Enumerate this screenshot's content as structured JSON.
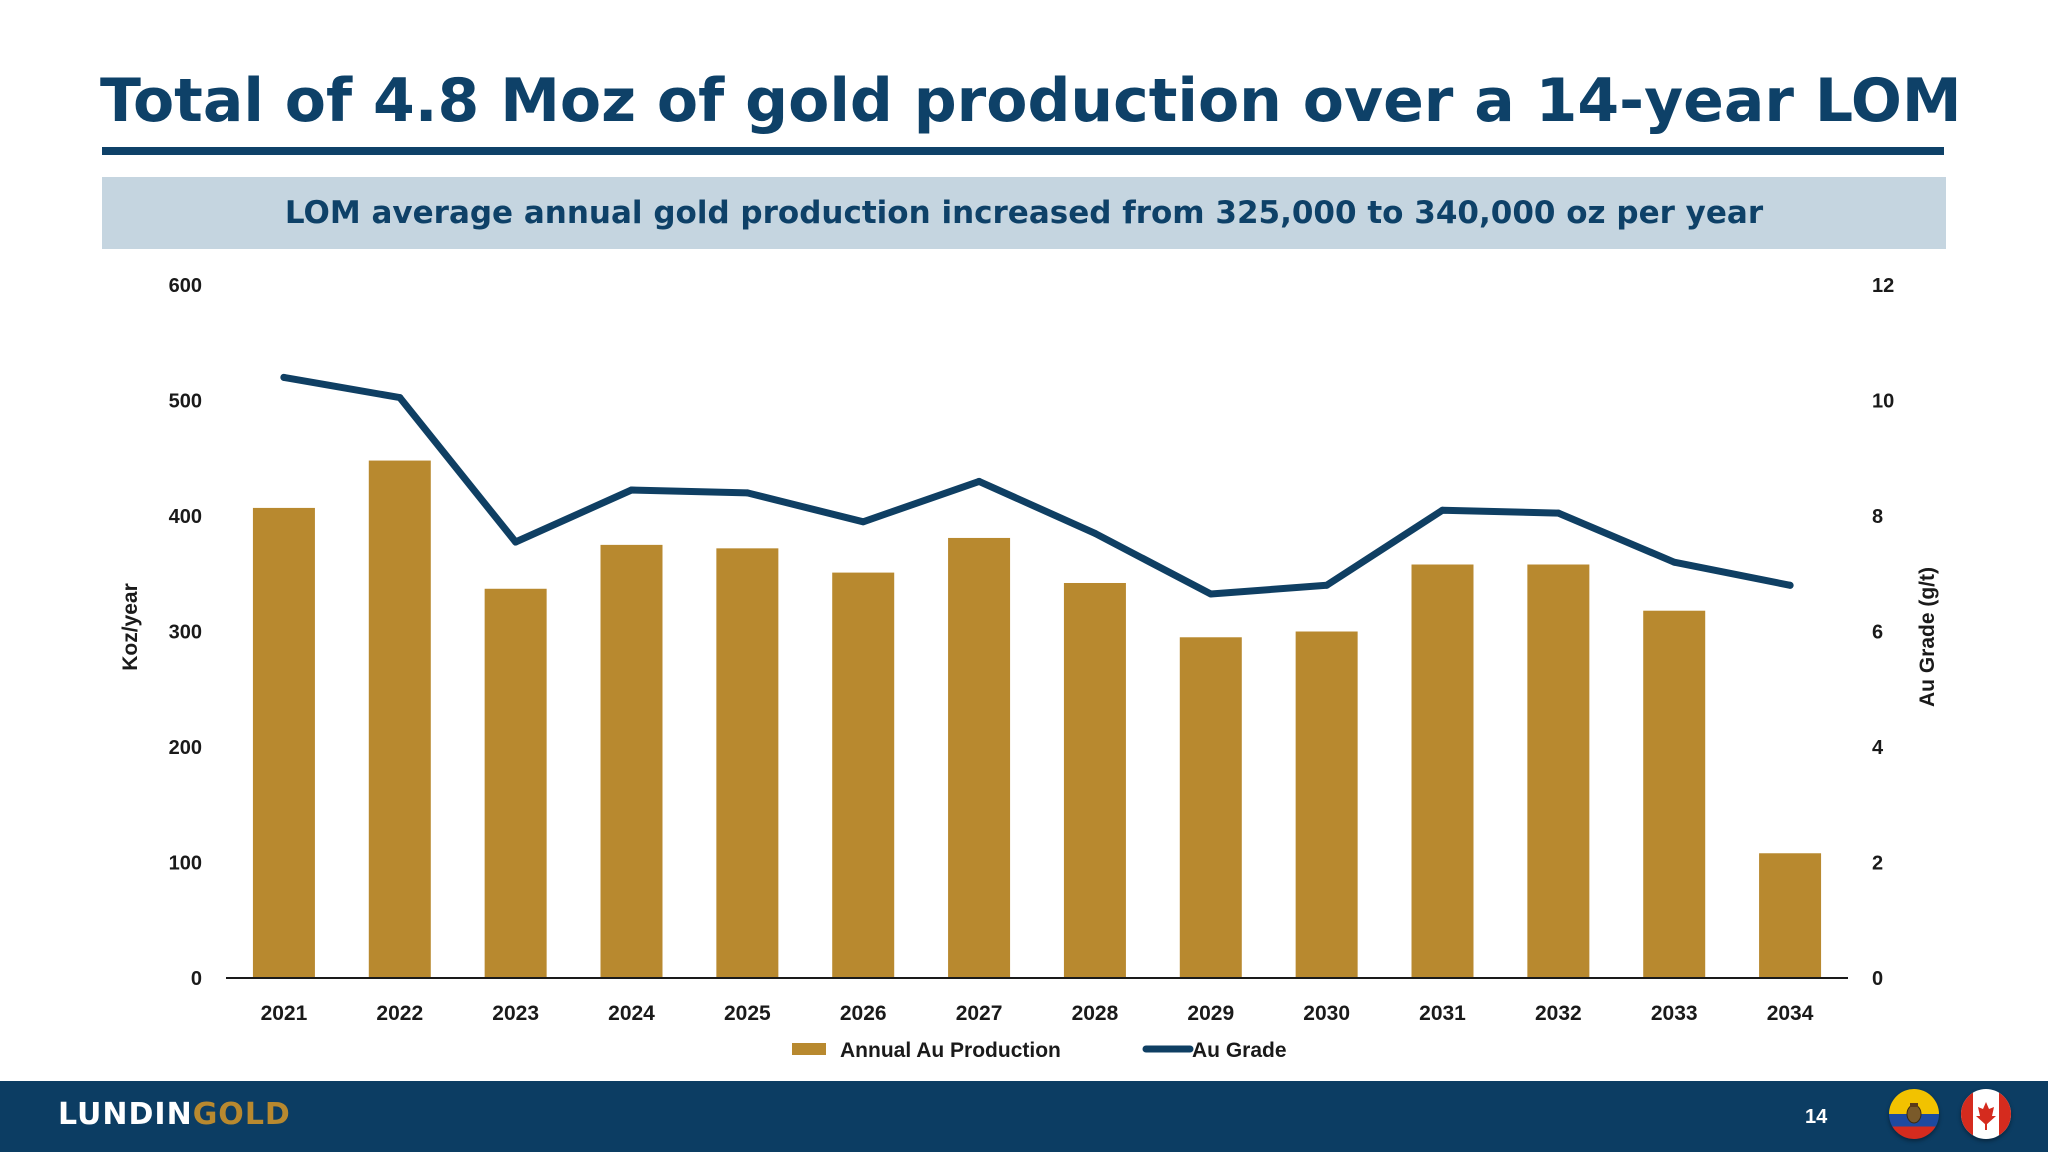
{
  "slide": {
    "title": "Total of 4.8 Moz of gold production over a 14-year LOM",
    "subtitle": "LOM average annual gold production increased from 325,000 to 340,000 oz per year",
    "page_number": "14",
    "logo": {
      "part1": "LUNDIN",
      "part2": "GOLD"
    },
    "flags": [
      "ecuador-flag-icon",
      "canada-flag-icon"
    ]
  },
  "colors": {
    "brand_navy": "#0e4168",
    "bar_gold": "#b8892f",
    "line_navy": "#0f3f63",
    "subtitle_bg": "#c5d5e0"
  },
  "chart_data": {
    "type": "bar",
    "categories": [
      "2021",
      "2022",
      "2023",
      "2024",
      "2025",
      "2026",
      "2027",
      "2028",
      "2029",
      "2030",
      "2031",
      "2032",
      "2033",
      "2034"
    ],
    "series": [
      {
        "name": "Annual Au Production",
        "type": "bar",
        "axis": "left",
        "values": [
          407,
          448,
          337,
          375,
          372,
          351,
          381,
          342,
          295,
          300,
          358,
          358,
          318,
          108
        ]
      },
      {
        "name": "Au Grade",
        "type": "line",
        "axis": "right",
        "values": [
          10.4,
          10.05,
          7.55,
          8.45,
          8.4,
          7.9,
          8.6,
          7.7,
          6.65,
          6.8,
          8.1,
          8.05,
          7.2,
          6.8
        ]
      }
    ],
    "ylabel": "Koz/year",
    "y2label": "Au Grade (g/t)",
    "ylim": [
      0,
      600
    ],
    "y2lim": [
      0,
      12
    ],
    "yticks": [
      "0",
      "100",
      "200",
      "300",
      "400",
      "500",
      "600"
    ],
    "y2ticks": [
      "0",
      "2",
      "4",
      "6",
      "8",
      "10",
      "12"
    ],
    "legend_position": "bottom",
    "grid": false
  }
}
